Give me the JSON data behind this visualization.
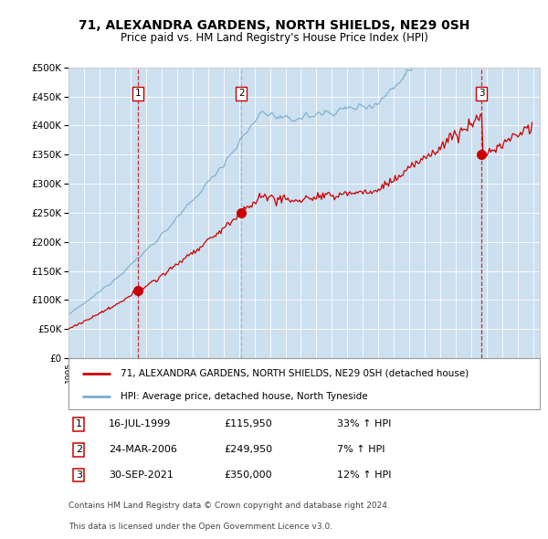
{
  "title1": "71, ALEXANDRA GARDENS, NORTH SHIELDS, NE29 0SH",
  "title2": "Price paid vs. HM Land Registry's House Price Index (HPI)",
  "legend_label_red": "71, ALEXANDRA GARDENS, NORTH SHIELDS, NE29 0SH (detached house)",
  "legend_label_blue": "HPI: Average price, detached house, North Tyneside",
  "sale_dates_str": [
    "16-JUL-1999",
    "24-MAR-2006",
    "30-SEP-2021"
  ],
  "sale_prices": [
    115950,
    249950,
    350000
  ],
  "sale_labels": [
    "1",
    "2",
    "3"
  ],
  "sale_hpi_pct": [
    "33% ↑ HPI",
    "7% ↑ HPI",
    "12% ↑ HPI"
  ],
  "footer1": "Contains HM Land Registry data © Crown copyright and database right 2024.",
  "footer2": "This data is licensed under the Open Government Licence v3.0.",
  "red_color": "#cc0000",
  "blue_color": "#7aadcf",
  "shade_color": "#cce0f0",
  "vline1_color": "#cc0000",
  "vline2_color": "#aaaaaa",
  "vline3_color": "#cc0000",
  "ylim_min": 0,
  "ylim_max": 500000,
  "ytick_step": 50000,
  "xstart_year": 1995,
  "xend_year": 2025
}
